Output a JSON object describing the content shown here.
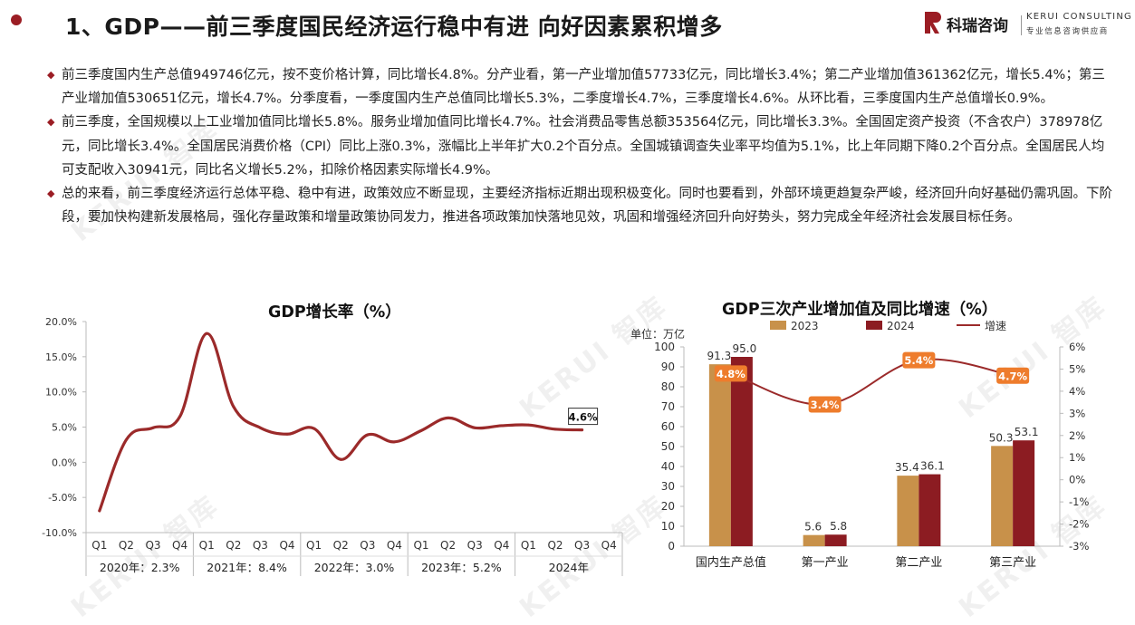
{
  "header": {
    "title": "1、GDP——前三季度国民经济运行稳中有进 向好因素累积增多",
    "logo_cn": "科瑞咨询",
    "logo_en": "KERUI CONSULTING",
    "logo_sub": "专业信息咨询供应商"
  },
  "paragraphs": [
    "前三季度国内生产总值949746亿元，按不变价格计算，同比增长4.8%。分产业看，第一产业增加值57733亿元，同比增长3.4%；第二产业增加值361362亿元，增长5.4%；第三产业增加值530651亿元，增长4.7%。分季度看，一季度国内生产总值同比增长5.3%，二季度增长4.7%，三季度增长4.6%。从环比看，三季度国内生产总值增长0.9%。",
    "前三季度，全国规模以上工业增加值同比增长5.8%。服务业增加值同比增长4.7%。社会消费品零售总额353564亿元，同比增长3.3%。全国固定资产投资（不含农户）378978亿元，同比增长3.4%。全国居民消费价格（CPI）同比上涨0.3%，涨幅比上半年扩大0.2个百分点。全国城镇调查失业率平均值为5.1%，比上年同期下降0.2个百分点。全国居民人均可支配收入30941元，同比名义增长5.2%，扣除价格因素实际增长4.9%。",
    "总的来看，前三季度经济运行总体平稳、稳中有进，政策效应不断显现，主要经济指标近期出现积极变化。同时也要看到，外部环境更趋复杂严峻，经济回升向好基础仍需巩固。下阶段，要加快构建新发展格局，强化存量政策和增量政策协同发力，推进各项政策加快落地见效，巩固和增强经济回升向好势头，努力完成全年经济社会发展目标任务。"
  ],
  "watermark": "KERUI 智库",
  "colors": {
    "accent": "#9b1d24",
    "line": "#9b2a2a",
    "bar2023": "#c8914a",
    "bar2024": "#8c1c22",
    "label_bg": "#ee7c2c"
  },
  "chart_data": [
    {
      "type": "line",
      "title": "GDP增长率（%）",
      "x": [
        "Q1",
        "Q2",
        "Q3",
        "Q4",
        "Q1",
        "Q2",
        "Q3",
        "Q4",
        "Q1",
        "Q2",
        "Q3",
        "Q4",
        "Q1",
        "Q2",
        "Q3",
        "Q4",
        "Q1",
        "Q2",
        "Q3",
        "Q4"
      ],
      "groups": [
        "2020年：2.3%",
        "2021年：8.4%",
        "2022年：3.0%",
        "2023年：5.2%",
        "2024年"
      ],
      "series": [
        {
          "values": [
            -6.9,
            3.2,
            4.9,
            6.5,
            18.3,
            7.9,
            4.9,
            4.0,
            4.8,
            0.4,
            3.9,
            2.9,
            4.5,
            6.3,
            4.9,
            5.2,
            5.3,
            4.7,
            4.6,
            null
          ]
        }
      ],
      "annotation": "4.6%",
      "ylim": [
        -10,
        20
      ],
      "yticks": [
        "-10.0%",
        "-5.0%",
        "0.0%",
        "5.0%",
        "10.0%",
        "15.0%",
        "20.0%"
      ],
      "grid": false
    },
    {
      "type": "bar",
      "title": "GDP三次产业增加值及同比增速（%）",
      "unit_label": "单位：万亿",
      "categories": [
        "国内生产总值",
        "第一产业",
        "第二产业",
        "第三产业"
      ],
      "series": [
        {
          "name": "2023",
          "values": [
            91.3,
            5.6,
            35.4,
            50.3
          ]
        },
        {
          "name": "2024",
          "values": [
            95.0,
            5.8,
            36.1,
            53.1
          ]
        }
      ],
      "line_series": {
        "name": "增速",
        "values": [
          4.8,
          3.4,
          5.4,
          4.7
        ],
        "labels": [
          "4.8%",
          "3.4%",
          "5.4%",
          "4.7%"
        ]
      },
      "ylim": [
        0,
        100
      ],
      "yticks": [
        "0",
        "10",
        "20",
        "30",
        "40",
        "50",
        "60",
        "70",
        "80",
        "90",
        "100"
      ],
      "y2lim": [
        -3,
        6
      ],
      "y2ticks": [
        "-3%",
        "-2%",
        "-1%",
        "0%",
        "1%",
        "2%",
        "3%",
        "4%",
        "5%",
        "6%"
      ],
      "legend": "top"
    }
  ]
}
